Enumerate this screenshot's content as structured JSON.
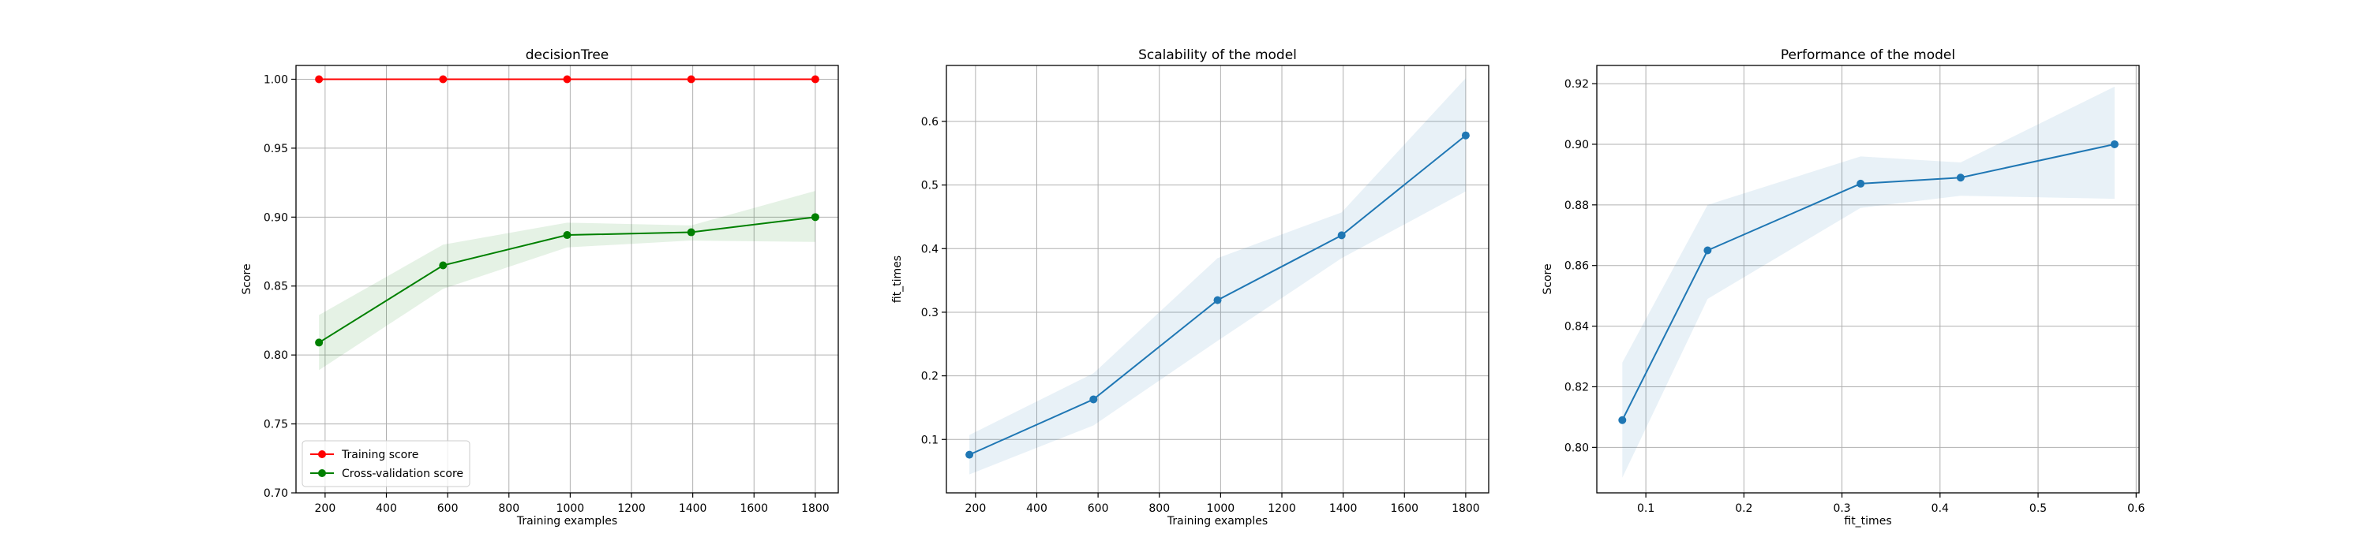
{
  "chart_data": [
    {
      "type": "line",
      "title": "decisionTree",
      "xlabel": "Training examples",
      "ylabel": "Score",
      "xlim": [
        105,
        1875
      ],
      "ylim": [
        0.7,
        1.01
      ],
      "xticks": [
        200,
        400,
        600,
        800,
        1000,
        1200,
        1400,
        1600,
        1800
      ],
      "yticks": [
        0.7,
        0.75,
        0.8,
        0.85,
        0.9,
        0.95,
        1.0
      ],
      "ytick_decimals": 2,
      "grid": true,
      "legend_position": "lower-left",
      "series": [
        {
          "name": "Training score",
          "color": "#ff0000",
          "x": [
            180,
            585,
            990,
            1395,
            1800
          ],
          "y": [
            1.0,
            1.0,
            1.0,
            1.0,
            1.0
          ],
          "band_low": [
            1.0,
            1.0,
            1.0,
            1.0,
            1.0
          ],
          "band_high": [
            1.0,
            1.0,
            1.0,
            1.0,
            1.0
          ],
          "band_color": "#ff0000"
        },
        {
          "name": "Cross-validation score",
          "color": "#008000",
          "x": [
            180,
            585,
            990,
            1395,
            1800
          ],
          "y": [
            0.809,
            0.865,
            0.887,
            0.889,
            0.9
          ],
          "band_low": [
            0.789,
            0.848,
            0.878,
            0.883,
            0.882
          ],
          "band_high": [
            0.829,
            0.88,
            0.896,
            0.894,
            0.919
          ],
          "band_color": "#008000"
        }
      ]
    },
    {
      "type": "line",
      "title": "Scalability of the model",
      "xlabel": "Training examples",
      "ylabel": "fit_times",
      "xlim": [
        105,
        1875
      ],
      "ylim": [
        0.016,
        0.688
      ],
      "xticks": [
        200,
        400,
        600,
        800,
        1000,
        1200,
        1400,
        1600,
        1800
      ],
      "yticks": [
        0.1,
        0.2,
        0.3,
        0.4,
        0.5,
        0.6
      ],
      "ytick_decimals": 1,
      "grid": true,
      "series": [
        {
          "color": "#1f77b4",
          "x": [
            180,
            585,
            990,
            1395,
            1800
          ],
          "y": [
            0.076,
            0.163,
            0.319,
            0.421,
            0.578
          ],
          "band_low": [
            0.045,
            0.122,
            0.255,
            0.385,
            0.49
          ],
          "band_high": [
            0.107,
            0.204,
            0.385,
            0.457,
            0.668
          ],
          "band_color": "#1f77b4"
        }
      ]
    },
    {
      "type": "line",
      "title": "Performance of the model",
      "xlabel": "fit_times",
      "ylabel": "Score",
      "xlim": [
        0.05,
        0.603
      ],
      "ylim": [
        0.785,
        0.926
      ],
      "xticks": [
        0.1,
        0.2,
        0.3,
        0.4,
        0.5,
        0.6
      ],
      "yticks": [
        0.8,
        0.82,
        0.84,
        0.86,
        0.88,
        0.9,
        0.92
      ],
      "xtick_decimals": 1,
      "ytick_decimals": 2,
      "grid": true,
      "series": [
        {
          "color": "#1f77b4",
          "x": [
            0.076,
            0.163,
            0.319,
            0.421,
            0.578
          ],
          "y": [
            0.809,
            0.865,
            0.887,
            0.889,
            0.9
          ],
          "band_low": [
            0.79,
            0.849,
            0.879,
            0.883,
            0.882
          ],
          "band_high": [
            0.828,
            0.88,
            0.896,
            0.894,
            0.919
          ],
          "band_color": "#1f77b4"
        }
      ]
    }
  ]
}
